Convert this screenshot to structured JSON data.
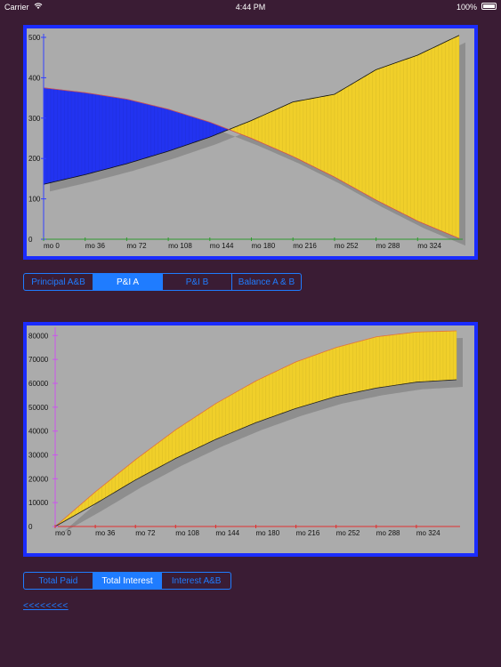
{
  "status_bar": {
    "carrier": "Carrier",
    "time": "4:44 PM",
    "battery": "100%"
  },
  "segmented_top": {
    "items": [
      "Principal A&B",
      "P&I A",
      "P&I B",
      "Balance A & B"
    ],
    "selected": 1
  },
  "segmented_bottom": {
    "items": [
      "Total Paid",
      "Total Interest",
      "Interest A&B"
    ],
    "selected": 1
  },
  "back_link": "<<<<<<<<",
  "chart_data": [
    {
      "type": "area",
      "title": "",
      "xlabel": "",
      "ylabel": "",
      "x_tick_labels": [
        "mo 0",
        "mo 36",
        "mo 72",
        "mo 108",
        "mo 144",
        "mo 180",
        "mo 216",
        "mo 252",
        "mo 288",
        "mo 324"
      ],
      "x_ticks": [
        0,
        36,
        72,
        108,
        144,
        180,
        216,
        252,
        288,
        324
      ],
      "xlim": [
        0,
        360
      ],
      "y_ticks": [
        0,
        100,
        200,
        300,
        400,
        500
      ],
      "ylim": [
        0,
        500
      ],
      "series": [
        {
          "x": [
            0,
            36,
            72,
            108,
            144,
            180,
            216,
            252,
            288,
            324,
            360
          ],
          "values": [
            136,
            160,
            187,
            218,
            253,
            294,
            340,
            359,
            420,
            456,
            505
          ]
        },
        {
          "x": [
            0,
            36,
            72,
            108,
            144,
            180,
            216,
            252,
            288,
            324,
            360
          ],
          "values": [
            375,
            363,
            347,
            322,
            290,
            250,
            205,
            154,
            97,
            45,
            2
          ]
        }
      ],
      "colors": {
        "area_low": "#2233f0",
        "area_high": "#f0cf2a",
        "axis_y": "#3340ff",
        "axis_x": "#2f9a2f"
      },
      "grid": false
    },
    {
      "type": "area",
      "title": "",
      "xlabel": "",
      "ylabel": "",
      "x_tick_labels": [
        "mo 0",
        "mo 36",
        "mo 72",
        "mo 108",
        "mo 144",
        "mo 180",
        "mo 216",
        "mo 252",
        "mo 288",
        "mo 324"
      ],
      "x_ticks": [
        0,
        36,
        72,
        108,
        144,
        180,
        216,
        252,
        288,
        324
      ],
      "xlim": [
        0,
        360
      ],
      "y_ticks": [
        0,
        10000,
        20000,
        30000,
        40000,
        50000,
        60000,
        70000,
        80000
      ],
      "ylim": [
        0,
        82000
      ],
      "series": [
        {
          "x": [
            0,
            36,
            72,
            108,
            144,
            180,
            216,
            252,
            288,
            324,
            360
          ],
          "values": [
            0,
            14500,
            28000,
            40500,
            51500,
            61000,
            69000,
            75000,
            79500,
            81500,
            82000
          ]
        },
        {
          "x": [
            0,
            36,
            72,
            108,
            144,
            180,
            216,
            252,
            288,
            324,
            360
          ],
          "values": [
            0,
            9500,
            19500,
            28500,
            36500,
            43500,
            49500,
            54500,
            58000,
            60500,
            61500
          ]
        }
      ],
      "colors": {
        "area": "#f0cf2a",
        "axis_y": "#cc55ee",
        "axis_x": "#e03030"
      },
      "grid": false
    }
  ]
}
